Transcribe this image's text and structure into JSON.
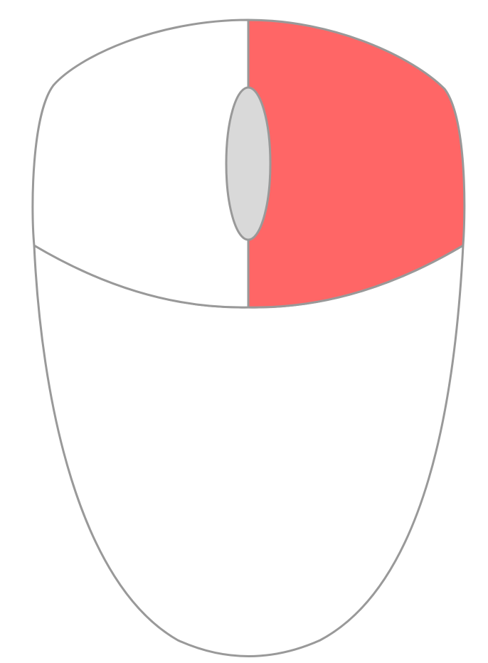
{
  "colors": {
    "background": "#ffffff",
    "outline": "#999999",
    "body_fill": "#ffffff",
    "left_button_fill": "#ffffff",
    "right_button_fill": "#ff6666",
    "scroll_wheel_fill": "#d9d9d9"
  },
  "mouse": {
    "highlighted_part": "right-button",
    "parts": [
      "left-button",
      "right-button",
      "scroll-wheel",
      "body"
    ]
  }
}
